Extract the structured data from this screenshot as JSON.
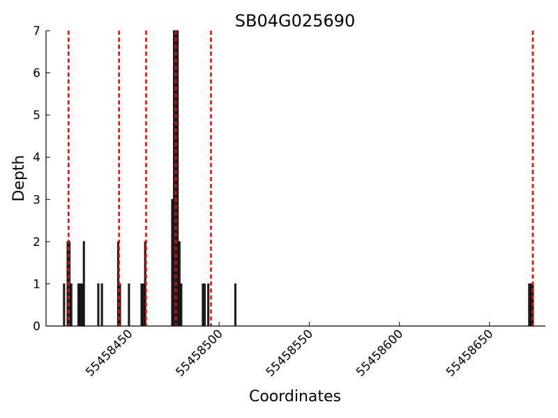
{
  "chart_data": {
    "type": "bar",
    "title": "SB04G025690",
    "xlabel": "Coordinates",
    "ylabel": "Depth",
    "xlim": [
      55458404,
      55458681
    ],
    "ylim": [
      0,
      7
    ],
    "x_ticks": [
      55458450,
      55458500,
      55458550,
      55458600,
      55458650
    ],
    "y_ticks": [
      0,
      1,
      2,
      3,
      4,
      5,
      6,
      7
    ],
    "bar_width": 1,
    "bars": [
      {
        "x": 55458414,
        "y": 1
      },
      {
        "x": 55458416,
        "y": 2
      },
      {
        "x": 55458417,
        "y": 2
      },
      {
        "x": 55458418,
        "y": 1
      },
      {
        "x": 55458422,
        "y": 1
      },
      {
        "x": 55458423,
        "y": 1
      },
      {
        "x": 55458424,
        "y": 1
      },
      {
        "x": 55458425,
        "y": 2
      },
      {
        "x": 55458433,
        "y": 1
      },
      {
        "x": 55458435,
        "y": 1
      },
      {
        "x": 55458444,
        "y": 2
      },
      {
        "x": 55458445,
        "y": 1
      },
      {
        "x": 55458450,
        "y": 1
      },
      {
        "x": 55458457,
        "y": 1
      },
      {
        "x": 55458458,
        "y": 1
      },
      {
        "x": 55458459,
        "y": 2
      },
      {
        "x": 55458474,
        "y": 3
      },
      {
        "x": 55458475,
        "y": 7
      },
      {
        "x": 55458476,
        "y": 7
      },
      {
        "x": 55458477,
        "y": 7
      },
      {
        "x": 55458478,
        "y": 2
      },
      {
        "x": 55458479,
        "y": 1
      },
      {
        "x": 55458491,
        "y": 1
      },
      {
        "x": 55458492,
        "y": 1
      },
      {
        "x": 55458494,
        "y": 1
      },
      {
        "x": 55458509,
        "y": 1
      },
      {
        "x": 55458672,
        "y": 1
      },
      {
        "x": 55458673,
        "y": 1
      },
      {
        "x": 55458674,
        "y": 1
      }
    ],
    "reference_lines": {
      "style": "dashed",
      "color": "#ff0000",
      "x": [
        55458416.5,
        55458444.5,
        55458459.5,
        55458476,
        55458495.5,
        55458674
      ]
    },
    "bar_color": "#3a3a3a",
    "bar_edge_color": "#000000",
    "grid": false,
    "legend": "none"
  }
}
